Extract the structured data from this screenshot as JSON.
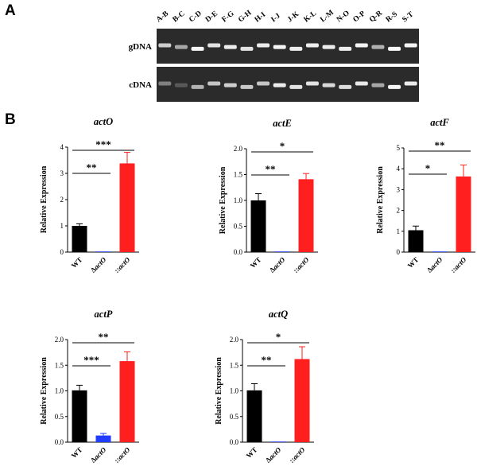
{
  "panel_a": {
    "label": "A",
    "lanes": [
      "A-B",
      "B-C",
      "C-D",
      "D-E",
      "F-G",
      "G-H",
      "H-I",
      "I-J",
      "J-K",
      "K-L",
      "L-M",
      "N-O",
      "O-P",
      "Q-R",
      "R-S",
      "S-T"
    ],
    "rows": [
      {
        "name": "gDNA",
        "intensity": [
          0.75,
          0.55,
          0.95,
          0.85,
          0.9,
          0.85,
          0.9,
          0.95,
          0.9,
          0.92,
          0.9,
          0.9,
          0.95,
          0.6,
          0.97,
          0.95
        ]
      },
      {
        "name": "cDNA",
        "intensity": [
          0.35,
          0.15,
          0.6,
          0.7,
          0.75,
          0.72,
          0.7,
          0.9,
          0.85,
          0.85,
          0.8,
          0.82,
          0.88,
          0.55,
          0.95,
          0.9
        ]
      }
    ]
  },
  "panel_b": {
    "label": "B"
  },
  "chart_data": [
    {
      "type": "bar",
      "title": "actO",
      "ylabel": "Relative Expression",
      "categories": [
        "WT",
        "ΔactO",
        "::actO"
      ],
      "values": [
        1.0,
        0.01,
        3.38
      ],
      "errors": [
        0.08,
        0.0,
        0.42
      ],
      "ylim": [
        0,
        4
      ],
      "yticks": [
        0,
        1,
        2,
        3,
        4
      ],
      "tick_decimals": 0,
      "colors": [
        "#000000",
        "#1f3cff",
        "#ff1f1f"
      ],
      "significance": [
        {
          "from": 0,
          "to": 1,
          "label": "**"
        },
        {
          "from": 0,
          "to": 2,
          "label": "***"
        }
      ]
    },
    {
      "type": "bar",
      "title": "actE",
      "ylabel": "Relative Expression",
      "categories": [
        "WT",
        "ΔactO",
        "::actO"
      ],
      "values": [
        1.0,
        0.005,
        1.41
      ],
      "errors": [
        0.13,
        0.0,
        0.11
      ],
      "ylim": [
        0,
        2
      ],
      "yticks": [
        0,
        0.5,
        1.0,
        1.5,
        2.0
      ],
      "tick_decimals": 1,
      "colors": [
        "#000000",
        "#1f3cff",
        "#ff1f1f"
      ],
      "significance": [
        {
          "from": 0,
          "to": 1,
          "label": "**"
        },
        {
          "from": 0,
          "to": 2,
          "label": "*"
        }
      ]
    },
    {
      "type": "bar",
      "title": "actF",
      "ylabel": "Relative Expression",
      "categories": [
        "WT",
        "ΔactO",
        "::actO"
      ],
      "values": [
        1.05,
        0.02,
        3.63
      ],
      "errors": [
        0.2,
        0.0,
        0.55
      ],
      "ylim": [
        0,
        5
      ],
      "yticks": [
        0,
        1,
        2,
        3,
        4,
        5
      ],
      "tick_decimals": 0,
      "colors": [
        "#000000",
        "#1f3cff",
        "#ff1f1f"
      ],
      "significance": [
        {
          "from": 0,
          "to": 1,
          "label": "*"
        },
        {
          "from": 0,
          "to": 2,
          "label": "**"
        }
      ]
    },
    {
      "type": "bar",
      "title": "actP",
      "ylabel": "Relative Expression",
      "categories": [
        "WT",
        "ΔactO",
        "::actO"
      ],
      "values": [
        1.01,
        0.13,
        1.58
      ],
      "errors": [
        0.1,
        0.04,
        0.18
      ],
      "ylim": [
        0,
        2
      ],
      "yticks": [
        0,
        0.5,
        1.0,
        1.5,
        2.0
      ],
      "tick_decimals": 1,
      "colors": [
        "#000000",
        "#1f3cff",
        "#ff1f1f"
      ],
      "significance": [
        {
          "from": 0,
          "to": 1,
          "label": "***"
        },
        {
          "from": 0,
          "to": 2,
          "label": "**"
        }
      ]
    },
    {
      "type": "bar",
      "title": "actQ",
      "ylabel": "Relative Expression",
      "categories": [
        "WT",
        "ΔactO",
        "::actO"
      ],
      "values": [
        1.01,
        0.005,
        1.62
      ],
      "errors": [
        0.13,
        0.0,
        0.24
      ],
      "ylim": [
        0,
        2
      ],
      "yticks": [
        0,
        0.5,
        1.0,
        1.5,
        2.0
      ],
      "tick_decimals": 1,
      "colors": [
        "#000000",
        "#1f3cff",
        "#ff1f1f"
      ],
      "significance": [
        {
          "from": 0,
          "to": 1,
          "label": "**"
        },
        {
          "from": 0,
          "to": 2,
          "label": "*"
        }
      ]
    }
  ]
}
